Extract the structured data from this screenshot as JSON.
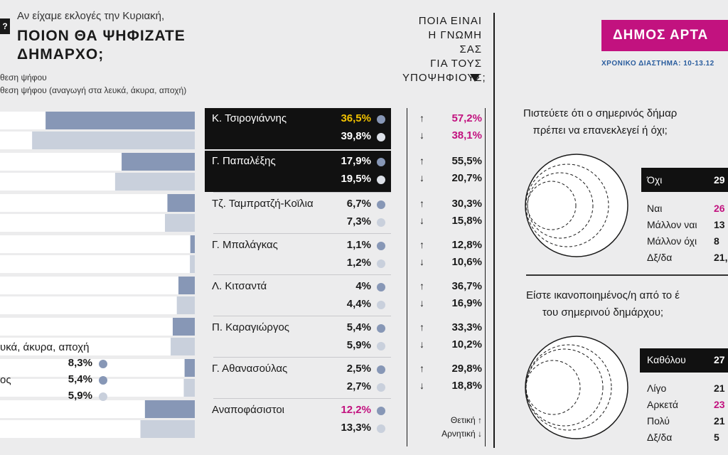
{
  "vote_section": {
    "intro": "Αν είχαμε εκλογές την Κυριακή,",
    "headline_line1": "ΠΟΙΟΝ ΘΑ ΨΗΦΙΖΑΤΕ",
    "headline_line2": "ΔΗΜΑΡΧΟ;",
    "legend_first": "θεση ψήφου",
    "legend_second": "θεση ψήφου (αναγωγή στα λευκά, άκυρα, αποχή)",
    "other_label": "υκά, άκυρα, αποχή",
    "other_label2": "ος",
    "other_values": [
      "8,3%",
      "5,4%",
      "5,9%"
    ]
  },
  "opinion_section": {
    "heading": [
      "ΠΟΙΑ ΕΙΝΑΙ",
      "Η ΓΝΩΜΗ ΣΑΣ",
      "ΓΙΑ ΤΟΥΣ",
      "ΥΠΟΨΗΦΙΟΥΣ;"
    ],
    "legend_positive": "Θετική",
    "legend_negative": "Αρνητική"
  },
  "chart_data": {
    "type": "bar",
    "series": [
      {
        "name": "θεση ψήφου",
        "color": "#8797b6"
      },
      {
        "name": "θεση ψήφου (αναγωγή στα λευκά, άκυρα, αποχή)",
        "color": "#c9d0dc"
      }
    ],
    "candidates": [
      {
        "name": "Κ. Τσιρογιάννης",
        "first": "36,5%",
        "second": "39,8%",
        "first_value": 36.5,
        "second_value": 39.8,
        "positive": "57,2%",
        "negative": "38,1%",
        "highlight": true
      },
      {
        "name": "Γ. Παπαλέξης",
        "first": "17,9%",
        "second": "19,5%",
        "first_value": 17.9,
        "second_value": 19.5,
        "positive": "55,5%",
        "negative": "20,7%",
        "highlight": true
      },
      {
        "name": "Τζ. Ταμπρατζή-Κοϊλια",
        "first": "6,7%",
        "second": "7,3%",
        "first_value": 6.7,
        "second_value": 7.3,
        "positive": "30,3%",
        "negative": "15,8%",
        "highlight": false
      },
      {
        "name": "Γ. Μπαλάγκας",
        "first": "1,1%",
        "second": "1,2%",
        "first_value": 1.1,
        "second_value": 1.2,
        "positive": "12,8%",
        "negative": "10,6%",
        "highlight": false
      },
      {
        "name": "Λ. Κιτσαντά",
        "first": "4%",
        "second": "4,4%",
        "first_value": 4.0,
        "second_value": 4.4,
        "positive": "36,7%",
        "negative": "16,9%",
        "highlight": false
      },
      {
        "name": "Π. Καραγιώργος",
        "first": "5,4%",
        "second": "5,9%",
        "first_value": 5.4,
        "second_value": 5.9,
        "positive": "33,3%",
        "negative": "10,2%",
        "highlight": false
      },
      {
        "name": "Γ. Αθανασούλας",
        "first": "2,5%",
        "second": "2,7%",
        "first_value": 2.5,
        "second_value": 2.7,
        "positive": "29,8%",
        "negative": "18,8%",
        "highlight": false
      },
      {
        "name": "Αναποφάσιστοι",
        "first": "12,2%",
        "second": "13,3%",
        "first_value": 12.2,
        "second_value": 13.3,
        "positive": "",
        "negative": "",
        "highlight": false
      }
    ],
    "other": {
      "first_value": 8.3,
      "second_value": 5.9
    },
    "colors": {
      "highlight_yellow": "#f2c200",
      "highlight_pink": "#c2127f",
      "first_dot": "#8797b6",
      "second_dot": "#c9d0dc"
    }
  },
  "municipality": {
    "title": "ΔΗΜΟΣ ΑΡΤΑ",
    "period": "ΧΡΟΝΙΚΟ ΔΙΑΣΤΗΜΑ: 10-13.12",
    "q1": [
      "Πιστεύετε ότι ο σημερινός δήμαρ",
      "πρέπει να επανεκλεγεί ή όχι;"
    ],
    "q1_answers": [
      {
        "label": "Όχι",
        "value": "29"
      },
      {
        "label": "Ναι",
        "value": "26"
      },
      {
        "label": "Μάλλον ναι",
        "value": "13"
      },
      {
        "label": "Μάλλον όχι",
        "value": "8"
      },
      {
        "label": "Δξ/δα",
        "value": "21,"
      }
    ],
    "q2": [
      "Είστε ικανοποιημένος/η από το έ",
      "του σημερινού δημάρχου;"
    ],
    "q2_answers": [
      {
        "label": "Καθόλου",
        "value": "27"
      },
      {
        "label": "Λίγο",
        "value": "21"
      },
      {
        "label": "Αρκετά",
        "value": "23"
      },
      {
        "label": "Πολύ",
        "value": "21"
      },
      {
        "label": "Δξ/δα",
        "value": "5"
      }
    ]
  }
}
